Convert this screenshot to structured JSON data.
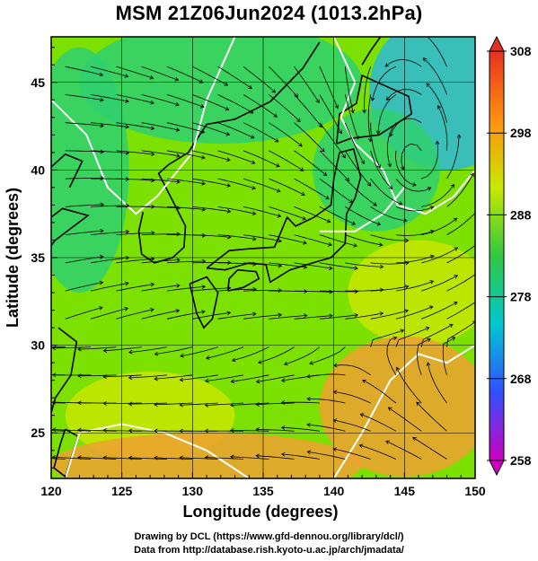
{
  "title": "MSM 21Z06Jun2024 (1013.2hPa)",
  "credits": {
    "line1": "Drawing by DCL (https://www.gfd-dennou.org/library/dcl/)",
    "line2": "Data from http://database.rish.kyoto-u.ac.jp/arch/jmadata/"
  },
  "chart_data": {
    "type": "heatmap",
    "title": "MSM 21Z06Jun2024 (1013.2hPa)",
    "xlabel": "Longitude (degrees)",
    "ylabel": "Latitude  (degrees)",
    "xlim": [
      120,
      150
    ],
    "ylim": [
      22.4,
      47.6
    ],
    "x_ticks": [
      120,
      125,
      130,
      135,
      140,
      145,
      150
    ],
    "y_ticks": [
      25,
      30,
      35,
      40,
      45
    ],
    "grid": true,
    "colorbar": {
      "ticks": [
        258,
        268,
        278,
        288,
        298,
        308
      ],
      "range": [
        258,
        308
      ],
      "colors": [
        "#d000c0",
        "#3050ff",
        "#00c8d0",
        "#30c840",
        "#c8e800",
        "#ff9010",
        "#e83020"
      ],
      "extend": "both"
    },
    "overlay": "streamlines",
    "field_colors": {
      "cold": "#2fb8d8",
      "cool": "#2fd070",
      "mild": "#7ce000",
      "warm": "#c8e600",
      "hot": "#f0a030",
      "coast": "#000000",
      "contour": "#ffffff"
    }
  }
}
